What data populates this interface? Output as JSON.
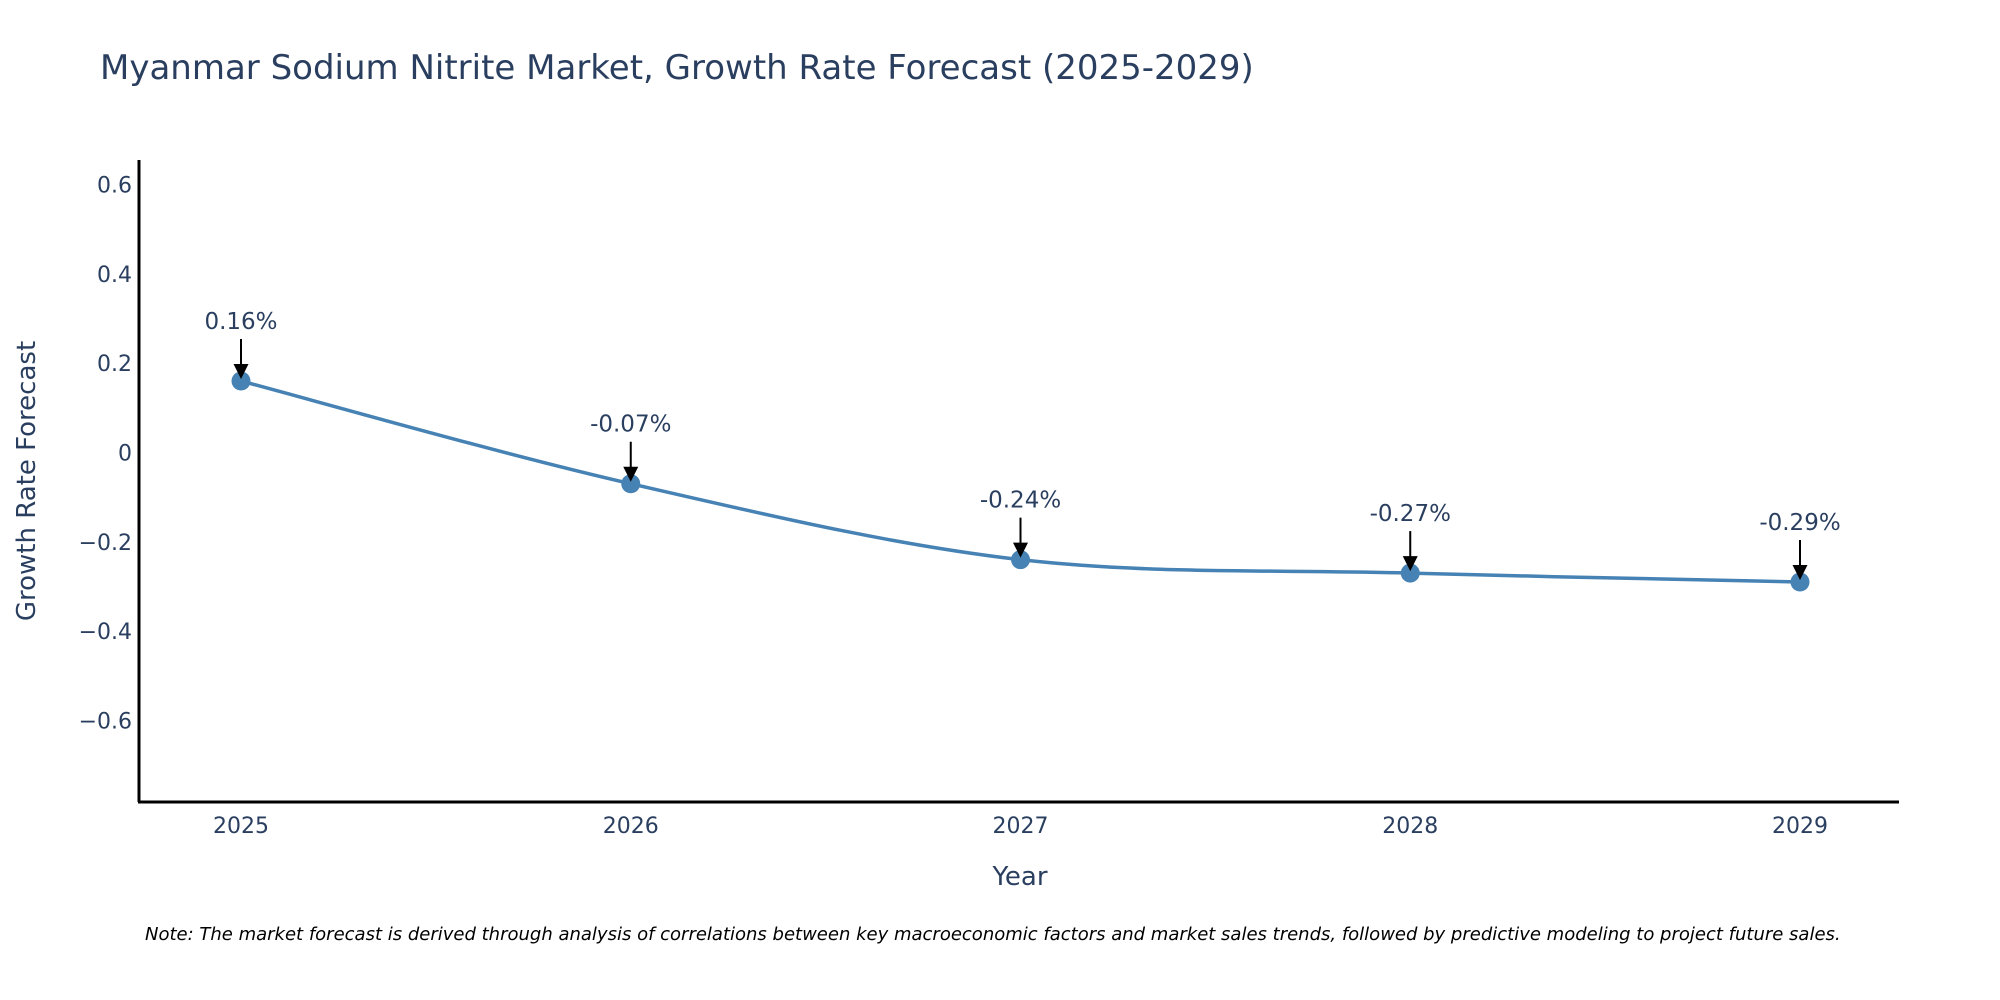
{
  "chart_data": {
    "type": "line",
    "title": "Myanmar Sodium Nitrite Market, Growth Rate Forecast (2025-2029)",
    "xlabel": "Year",
    "ylabel": "Growth Rate Forecast",
    "categories": [
      "2025",
      "2026",
      "2027",
      "2028",
      "2029"
    ],
    "values": [
      0.16,
      -0.07,
      -0.24,
      -0.27,
      -0.29
    ],
    "data_labels": [
      "0.16%",
      "-0.07%",
      "-0.24%",
      "-0.27%",
      "-0.29%"
    ],
    "y_ticks": [
      0.6,
      0.4,
      0.2,
      0,
      -0.2,
      -0.4,
      -0.6
    ],
    "y_tick_labels": [
      "0.6",
      "0.4",
      "0.2",
      "0",
      "−0.2",
      "−0.4",
      "−0.6"
    ],
    "ylim": [
      -0.79,
      0.66
    ],
    "grid": false,
    "legend": false,
    "note": "Note: The market forecast is derived through analysis of correlations between key macroeconomic factors and market sales trends, followed by predictive modeling to project future sales.",
    "colors": {
      "line": "#4682b4",
      "marker": "#4682b4",
      "axis": "#000000",
      "text": "#2a3f5f",
      "arrow": "#000000"
    }
  }
}
